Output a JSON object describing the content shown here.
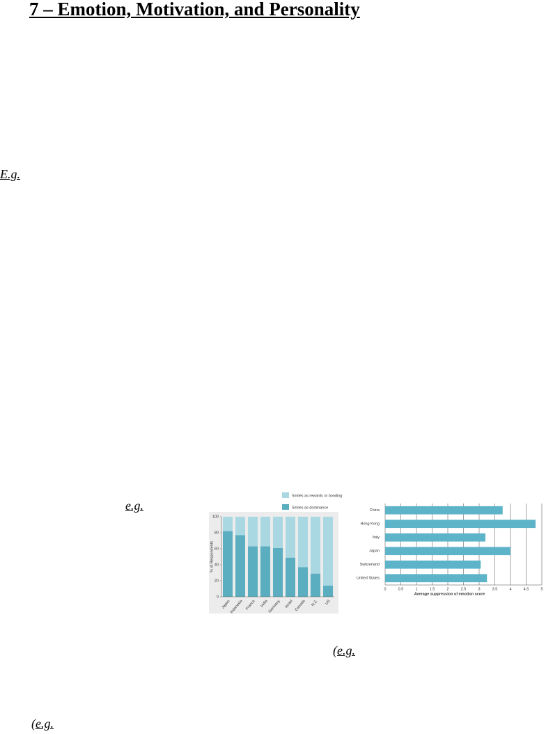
{
  "header": {
    "title": "7 – Emotion, Motivation, and Personality"
  },
  "snippets": [
    {
      "text": "E.g."
    },
    {
      "text": "e.g."
    },
    {
      "open": "(",
      "text": "e.g."
    },
    {
      "open": "(",
      "text": "e.g."
    }
  ],
  "chart_data": [
    {
      "type": "stacked-bar",
      "y_label": "% of Respondents",
      "categories": [
        "Japan",
        "Indonesia",
        "France",
        "India",
        "Germany",
        "Israel",
        "Canada",
        "N.Z.",
        "US"
      ],
      "series": [
        {
          "name": "Smiles as dominance",
          "color": "#5aaebf",
          "values": [
            82,
            77,
            63,
            63,
            61,
            49,
            37,
            29,
            14
          ]
        },
        {
          "name": "Smiles as rewards or bonding",
          "color": "#a9d8e3",
          "values": [
            18,
            23,
            37,
            37,
            39,
            51,
            63,
            71,
            86
          ]
        }
      ],
      "ylim": [
        0,
        100
      ],
      "yticks": [
        0,
        20,
        40,
        60,
        80,
        100
      ],
      "legend": "top-right"
    },
    {
      "type": "hbar",
      "x_label": "Average suppression of emotion score",
      "categories": [
        "China",
        "Hong Kong",
        "Italy",
        "Japan",
        "Switzerland",
        "United States"
      ],
      "values": [
        3.75,
        4.8,
        3.2,
        4.0,
        3.05,
        3.25
      ],
      "color": "#5db3c8",
      "xlim": [
        0,
        5
      ],
      "xticks": [
        0,
        0.5,
        1,
        1.5,
        2,
        2.5,
        3,
        3.5,
        4,
        4.5,
        5
      ],
      "grid": true
    }
  ]
}
